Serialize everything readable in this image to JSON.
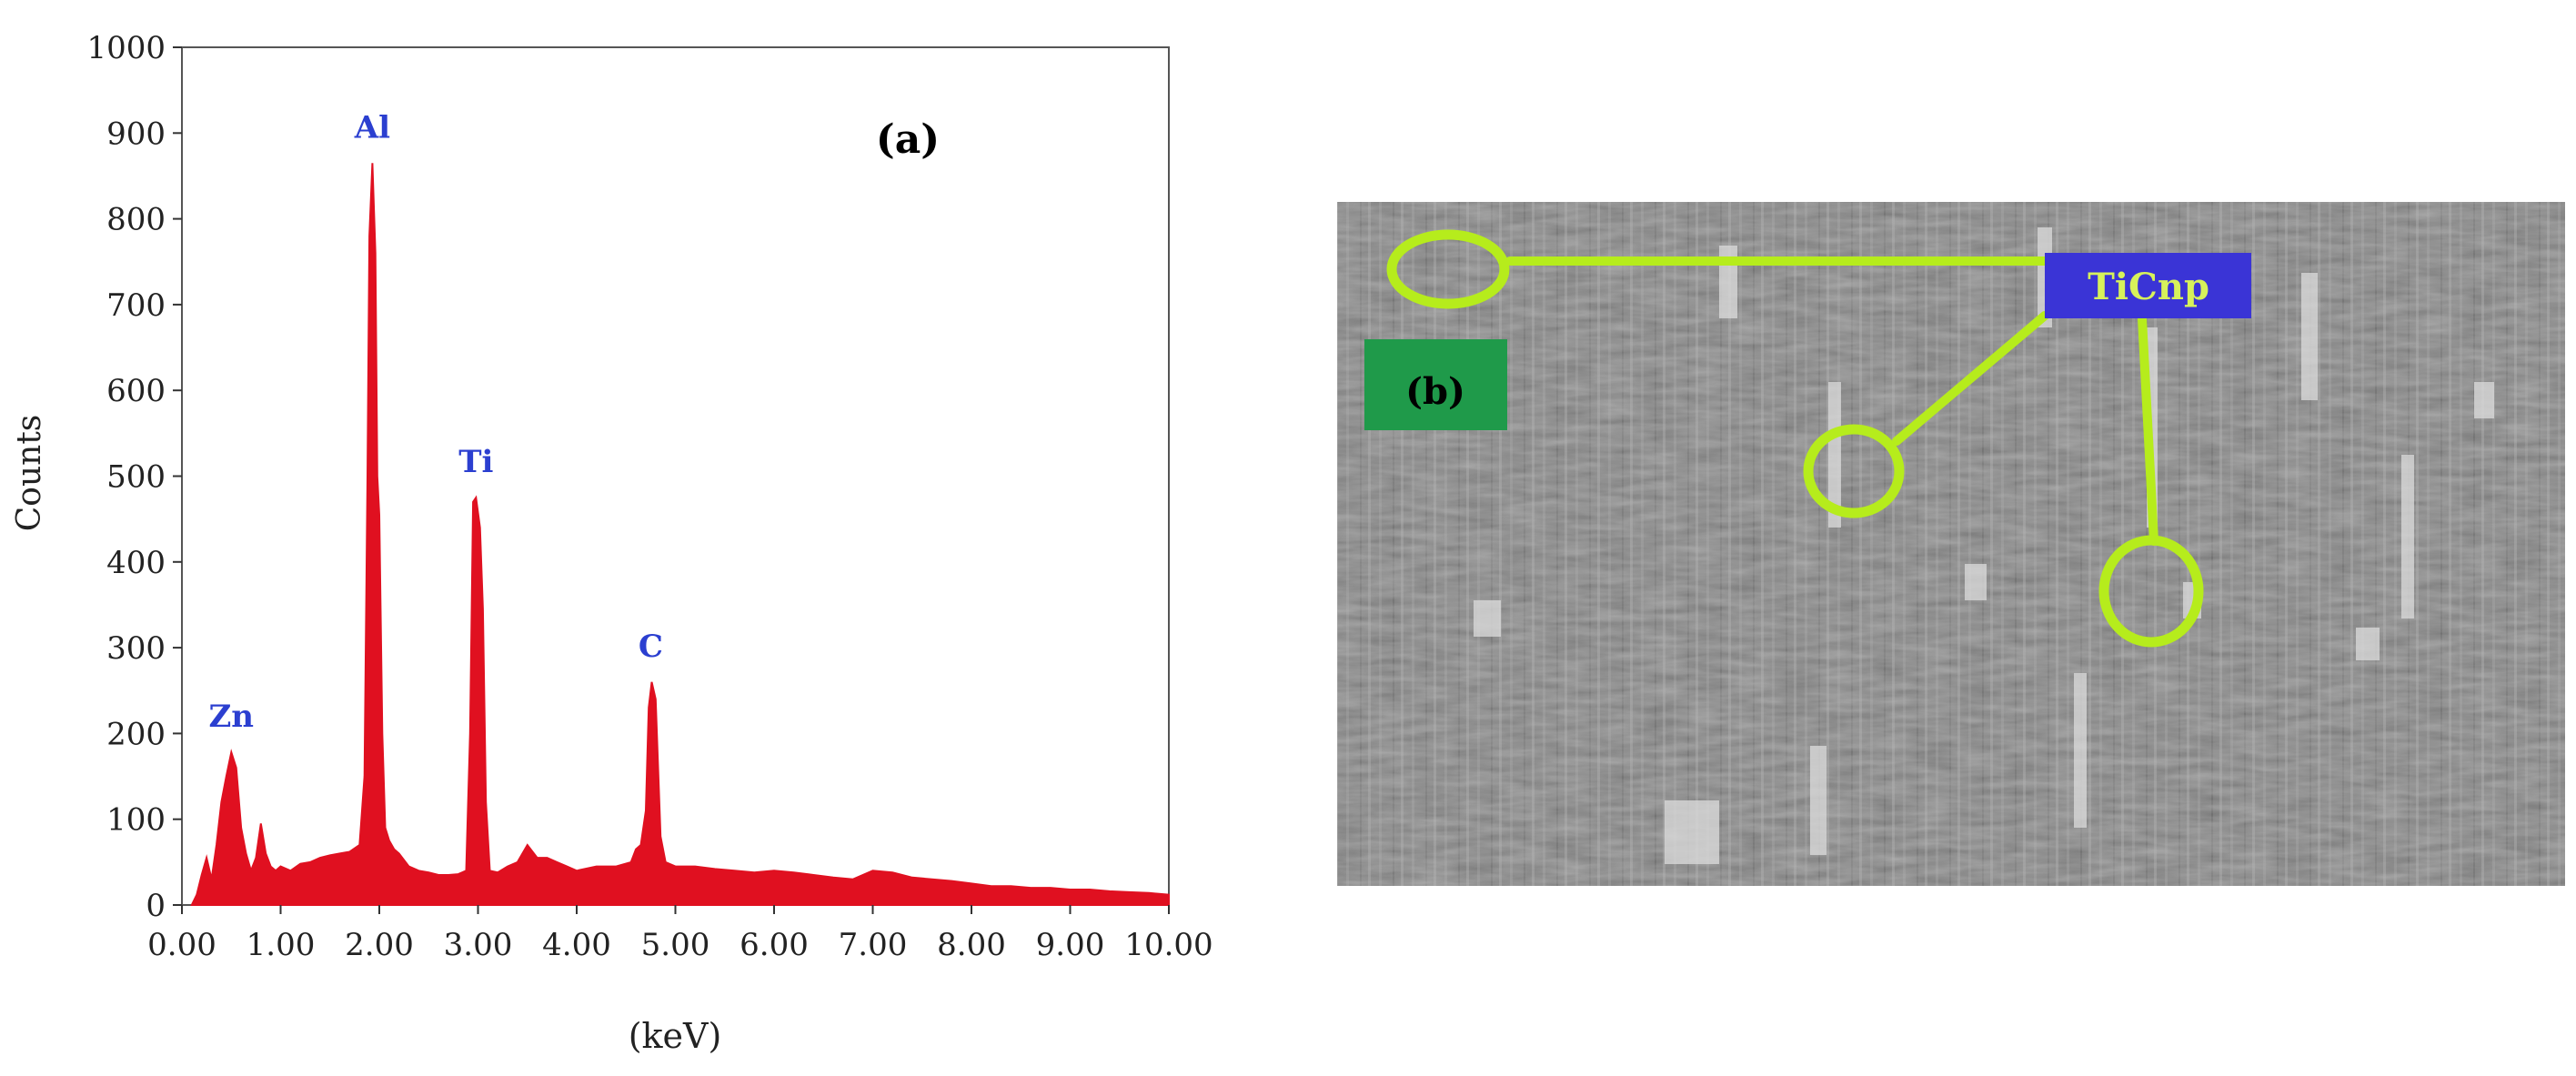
{
  "chart_data": {
    "type": "area",
    "title": "",
    "panel_label": "(a)",
    "xlabel": "(keV)",
    "ylabel": "Counts",
    "xlim": [
      0,
      10
    ],
    "ylim": [
      0,
      1000
    ],
    "xticks": [
      "0.00",
      "1.00",
      "2.00",
      "3.00",
      "4.00",
      "5.00",
      "6.00",
      "7.00",
      "8.00",
      "9.00",
      "10.00"
    ],
    "yticks": [
      "0",
      "100",
      "200",
      "300",
      "400",
      "500",
      "600",
      "700",
      "800",
      "900",
      "1000"
    ],
    "grid": false,
    "series_color": "#e01020",
    "peaks": [
      {
        "label": "Zn",
        "x": 0.5,
        "y": 178
      },
      {
        "label": "Al",
        "x": 1.93,
        "y": 865
      },
      {
        "label": "Ti",
        "x": 2.98,
        "y": 475
      },
      {
        "label": "C",
        "x": 4.75,
        "y": 260
      }
    ],
    "x": [
      0.1,
      0.15,
      0.2,
      0.25,
      0.3,
      0.35,
      0.4,
      0.45,
      0.5,
      0.55,
      0.6,
      0.65,
      0.7,
      0.75,
      0.8,
      0.85,
      0.9,
      0.95,
      1.0,
      1.1,
      1.2,
      1.3,
      1.4,
      1.5,
      1.6,
      1.7,
      1.8,
      1.85,
      1.88,
      1.9,
      1.93,
      1.96,
      1.98,
      2.0,
      2.03,
      2.06,
      2.1,
      2.15,
      2.2,
      2.3,
      2.4,
      2.5,
      2.6,
      2.7,
      2.8,
      2.88,
      2.92,
      2.95,
      2.98,
      3.02,
      3.05,
      3.08,
      3.12,
      3.2,
      3.3,
      3.4,
      3.5,
      3.6,
      3.7,
      3.8,
      3.9,
      4.0,
      4.2,
      4.4,
      4.55,
      4.6,
      4.65,
      4.7,
      4.73,
      4.76,
      4.8,
      4.85,
      4.9,
      5.0,
      5.2,
      5.4,
      5.6,
      5.8,
      6.0,
      6.2,
      6.4,
      6.6,
      6.8,
      7.0,
      7.2,
      7.4,
      7.6,
      7.8,
      8.0,
      8.2,
      8.4,
      8.6,
      8.8,
      9.0,
      9.2,
      9.4,
      9.6,
      9.8,
      10.0
    ],
    "y": [
      0,
      12,
      35,
      55,
      30,
      70,
      120,
      150,
      178,
      160,
      90,
      60,
      40,
      55,
      95,
      60,
      45,
      40,
      45,
      40,
      48,
      50,
      55,
      58,
      60,
      62,
      70,
      150,
      500,
      780,
      865,
      760,
      500,
      455,
      200,
      90,
      75,
      65,
      60,
      45,
      40,
      38,
      35,
      35,
      36,
      40,
      200,
      470,
      475,
      440,
      345,
      120,
      40,
      38,
      45,
      50,
      70,
      55,
      55,
      50,
      45,
      40,
      45,
      45,
      50,
      65,
      70,
      110,
      230,
      260,
      240,
      80,
      50,
      45,
      45,
      42,
      40,
      38,
      40,
      38,
      35,
      32,
      30,
      40,
      38,
      32,
      30,
      28,
      25,
      22,
      22,
      20,
      20,
      18,
      18,
      16,
      15,
      14,
      12
    ]
  },
  "micrograph": {
    "panel_label": "(b)",
    "callout_label": "TiCnp"
  },
  "colors": {
    "callout_line": "#b6ec1c",
    "callout_box": "#3a34d6",
    "callout_text": "#d7f25a",
    "tag_box": "#1f9a4a"
  }
}
